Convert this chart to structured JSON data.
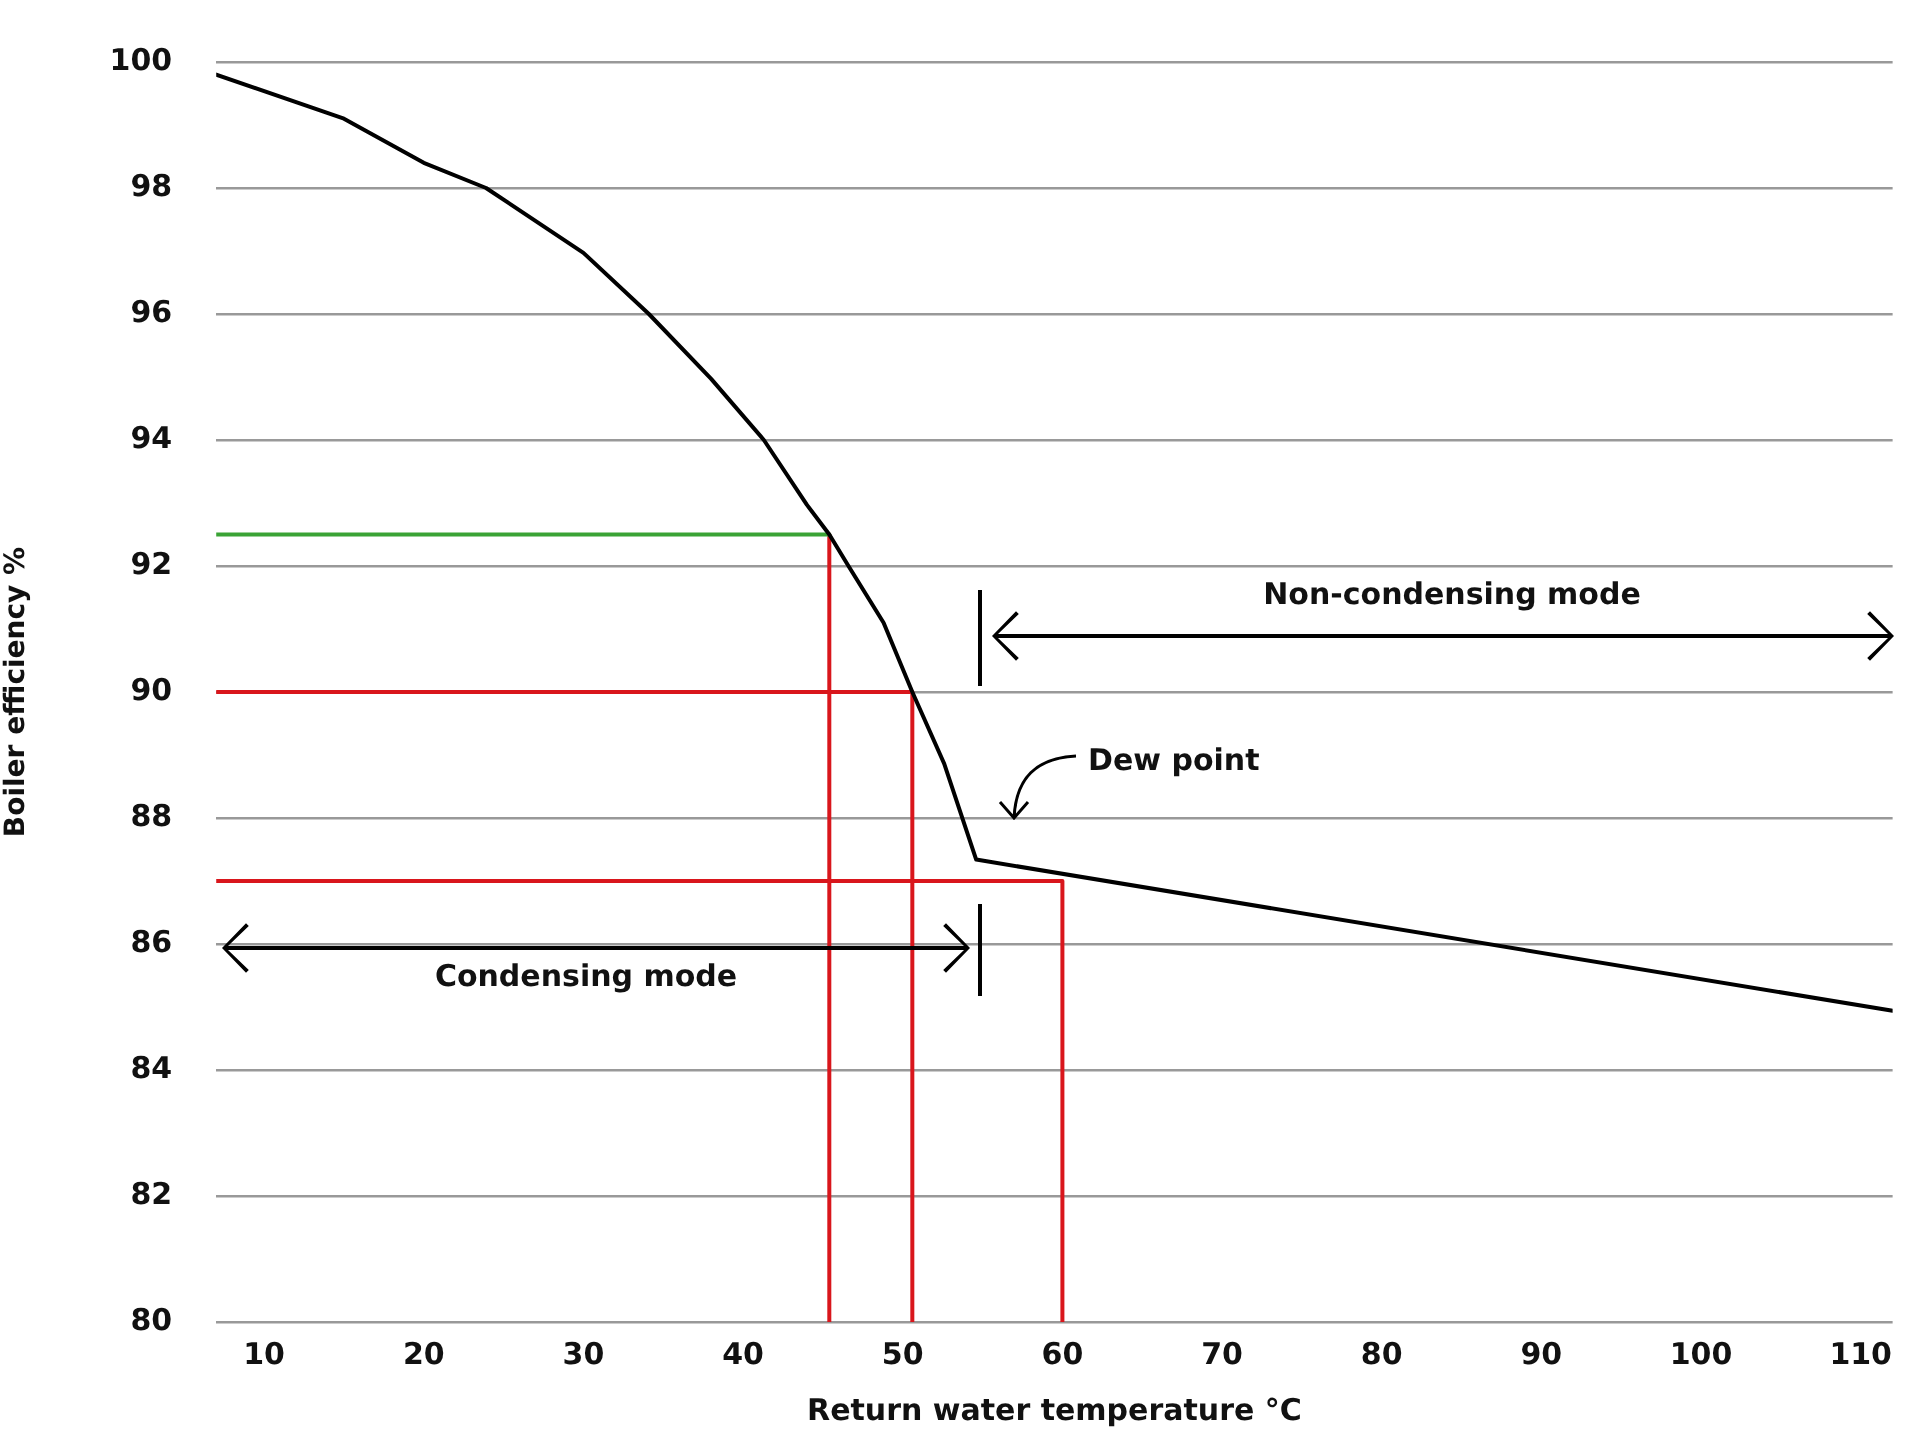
{
  "chart_data": {
    "type": "line",
    "xlabel": "Return water temperature °C",
    "ylabel": "Boiler efficiency %",
    "xlim": [
      7,
      112
    ],
    "xticks": [
      10,
      20,
      30,
      40,
      50,
      60,
      70,
      80,
      90,
      100,
      110
    ],
    "ylim": [
      80,
      100
    ],
    "yticks": [
      80,
      82,
      84,
      86,
      88,
      90,
      92,
      94,
      96,
      98,
      100
    ],
    "grid": "y",
    "legend": false,
    "marker": "none",
    "line_style": "solid",
    "series": [
      {
        "color": "#000000",
        "x": [
          7,
          15,
          20,
          23.9,
          30,
          34.1,
          38,
          41.3,
          44,
          45.4,
          46.6,
          48.8,
          50.6,
          52.6,
          54.6,
          112
        ],
        "values": [
          99.8,
          99.1,
          98.4,
          98,
          96.97,
          96,
          94.97,
          94,
          92.97,
          92.5,
          92,
          91.1,
          90,
          88.86,
          87.34,
          84.94
        ]
      },
      {
        "color": "#3aa335",
        "x": [
          7,
          45.4
        ],
        "values": [
          92.5,
          92.5
        ]
      },
      {
        "color": "#d9161c",
        "x": [
          45.4,
          45.4
        ],
        "values": [
          92.5,
          80
        ]
      },
      {
        "color": "#d9161c",
        "x": [
          7,
          50.6,
          50.6
        ],
        "values": [
          90,
          90,
          80
        ]
      },
      {
        "color": "#d9161c",
        "x": [
          7,
          60,
          60
        ],
        "values": [
          87,
          87,
          80
        ]
      }
    ],
    "annotations": [
      "Non-condensing mode",
      "Dew point",
      "Condensing mode"
    ]
  }
}
